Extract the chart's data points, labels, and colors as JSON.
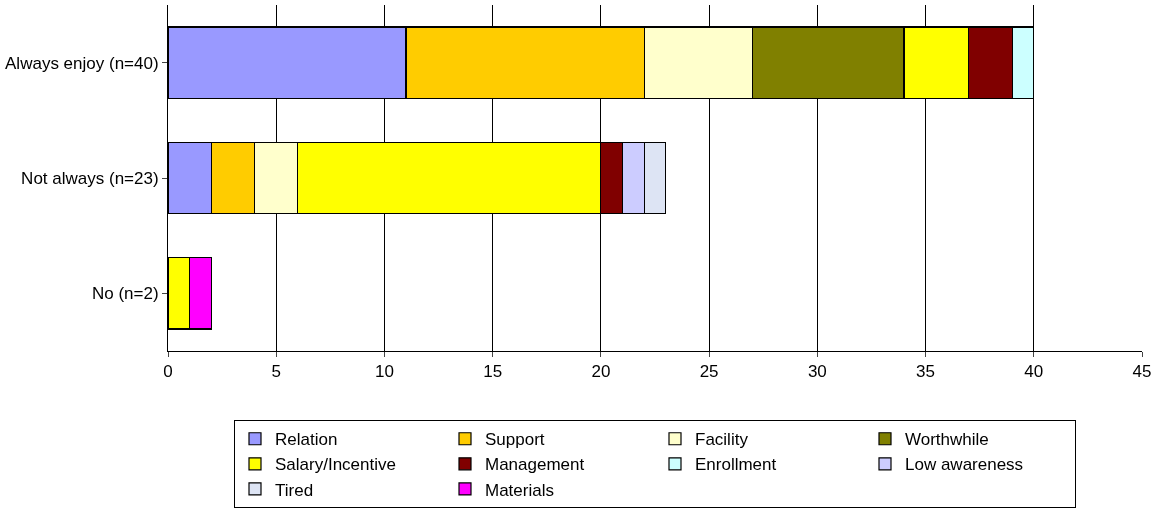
{
  "chart_data": {
    "type": "bar",
    "orientation": "horizontal",
    "stacked": true,
    "categories": [
      "Always enjoy (n=40)",
      "Not always (n=23)",
      "No (n=2)"
    ],
    "series": [
      {
        "name": "Relation",
        "color": "#9999ff",
        "values": [
          11,
          2,
          null
        ]
      },
      {
        "name": "Support",
        "color": "#ffcc00",
        "values": [
          11,
          2,
          null
        ]
      },
      {
        "name": "Facility",
        "color": "#ffffcc",
        "values": [
          5,
          2,
          null
        ]
      },
      {
        "name": "Worthwhile",
        "color": "#808000",
        "values": [
          7,
          null,
          null
        ]
      },
      {
        "name": "Salary/Incentive",
        "color": "#ffff00",
        "values": [
          3,
          14,
          1
        ]
      },
      {
        "name": "Management",
        "color": "#800000",
        "values": [
          2,
          1,
          null
        ]
      },
      {
        "name": "Enrollment",
        "color": "#ccffff",
        "values": [
          1,
          null,
          null
        ]
      },
      {
        "name": "Low awareness",
        "color": "#ccccff",
        "values": [
          null,
          1,
          null
        ]
      },
      {
        "name": "Tired",
        "color": "#dde4f4",
        "values": [
          null,
          1,
          null
        ]
      },
      {
        "name": "Materials",
        "color": "#ff00ff",
        "values": [
          null,
          null,
          1
        ]
      }
    ],
    "xlim": [
      0,
      45
    ],
    "xticks": [
      0,
      5,
      10,
      15,
      20,
      25,
      30,
      35,
      40,
      45
    ],
    "grid": "x",
    "legend": "bottom"
  }
}
